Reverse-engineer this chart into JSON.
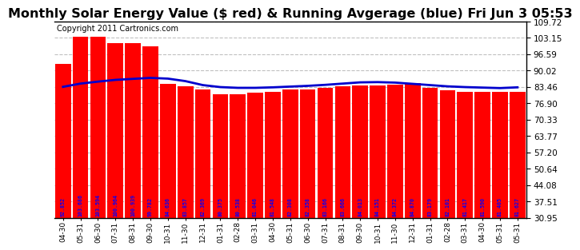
{
  "title": "Monthly Solar Energy Value ($ red) & Running Avgerage (blue) Fri Jun 3 05:53",
  "copyright": "Copyright 2011 Cartronics.com",
  "bar_values": [
    92.852,
    103.686,
    103.594,
    100.964,
    100.939,
    99.782,
    84.636,
    83.857,
    82.369,
    80.375,
    80.538,
    81.046,
    81.548,
    82.308,
    82.358,
    83.166,
    83.666,
    84.013,
    84.151,
    84.372,
    84.87,
    83.179,
    82.101,
    81.417,
    81.59,
    81.405,
    81.627
  ],
  "running_avg": [
    83.5,
    84.8,
    85.6,
    86.3,
    86.7,
    87.1,
    86.8,
    85.8,
    84.2,
    83.4,
    83.1,
    83.1,
    83.3,
    83.6,
    83.9,
    84.3,
    84.8,
    85.3,
    85.4,
    85.2,
    84.7,
    84.2,
    83.7,
    83.4,
    83.2,
    83.0,
    83.3
  ],
  "categories": [
    "04-30",
    "05-31",
    "06-30",
    "07-31",
    "08-31",
    "09-30",
    "10-31",
    "11-30",
    "12-31",
    "01-31",
    "02-28",
    "03-31",
    "04-30",
    "05-31",
    "06-30",
    "07-31",
    "08-31",
    "09-30",
    "10-31",
    "11-30",
    "12-31",
    "01-31",
    "02-28",
    "03-31",
    "04-30",
    "05-31",
    "05-31"
  ],
  "bar_color": "#ff0000",
  "line_color": "#0000cd",
  "bg_color": "#ffffff",
  "grid_color": "#c0c0c0",
  "yticks": [
    30.95,
    37.51,
    44.08,
    50.64,
    57.2,
    63.77,
    70.33,
    76.9,
    83.46,
    90.02,
    96.59,
    103.15,
    109.72
  ],
  "ylim": [
    30.95,
    109.72
  ],
  "title_fontsize": 11.5,
  "copyright_fontsize": 7,
  "value_fontsize": 5.0
}
